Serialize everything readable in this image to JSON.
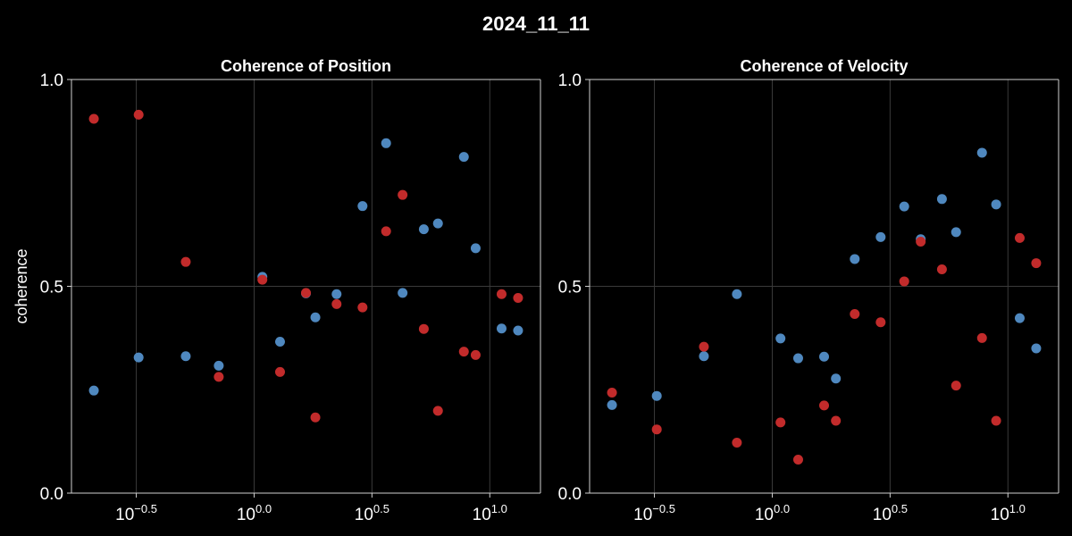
{
  "figure_title": "2024_11_11",
  "colors": {
    "background": "#000000",
    "blue": "#4f88bf",
    "red": "#c22b2b",
    "grid": "#3a3a3a",
    "spine": "#d0d0d0"
  },
  "chart_data": [
    {
      "type": "scatter",
      "title": "Coherence of Position",
      "xlabel": "",
      "ylabel": "coherence",
      "xscale": "log10",
      "ylim": [
        0,
        1
      ],
      "y_ticks": [
        {
          "value": 0,
          "label": "0.0"
        },
        {
          "value": 0.5,
          "label": "0.5"
        },
        {
          "value": 1,
          "label": "1.0"
        }
      ],
      "x_ticks": [
        {
          "exp": -0.5,
          "base": "10",
          "sup": "−0.5"
        },
        {
          "exp": 0.0,
          "base": "10",
          "sup": "0.0"
        },
        {
          "exp": 0.5,
          "base": "10",
          "sup": "0.5"
        },
        {
          "exp": 1.0,
          "base": "10",
          "sup": "1.0"
        }
      ],
      "grid": true,
      "series": [
        {
          "color": "blue",
          "points": [
            {
              "log10x": -0.68,
              "y": 0.248
            },
            {
              "log10x": -0.49,
              "y": 0.328
            },
            {
              "log10x": -0.29,
              "y": 0.331
            },
            {
              "log10x": -0.15,
              "y": 0.308
            },
            {
              "log10x": 0.035,
              "y": 0.523
            },
            {
              "log10x": 0.11,
              "y": 0.366
            },
            {
              "log10x": 0.22,
              "y": 0.483
            },
            {
              "log10x": 0.26,
              "y": 0.425
            },
            {
              "log10x": 0.35,
              "y": 0.481
            },
            {
              "log10x": 0.46,
              "y": 0.694
            },
            {
              "log10x": 0.56,
              "y": 0.846
            },
            {
              "log10x": 0.63,
              "y": 0.484
            },
            {
              "log10x": 0.72,
              "y": 0.638
            },
            {
              "log10x": 0.78,
              "y": 0.652
            },
            {
              "log10x": 0.89,
              "y": 0.813
            },
            {
              "log10x": 0.94,
              "y": 0.592
            },
            {
              "log10x": 1.05,
              "y": 0.398
            },
            {
              "log10x": 1.12,
              "y": 0.393
            }
          ]
        },
        {
          "color": "red",
          "points": [
            {
              "log10x": -0.68,
              "y": 0.905
            },
            {
              "log10x": -0.49,
              "y": 0.915
            },
            {
              "log10x": -0.29,
              "y": 0.559
            },
            {
              "log10x": -0.15,
              "y": 0.281
            },
            {
              "log10x": 0.035,
              "y": 0.516
            },
            {
              "log10x": 0.11,
              "y": 0.293
            },
            {
              "log10x": 0.22,
              "y": 0.484
            },
            {
              "log10x": 0.26,
              "y": 0.183
            },
            {
              "log10x": 0.35,
              "y": 0.457
            },
            {
              "log10x": 0.46,
              "y": 0.449
            },
            {
              "log10x": 0.56,
              "y": 0.633
            },
            {
              "log10x": 0.63,
              "y": 0.721
            },
            {
              "log10x": 0.72,
              "y": 0.397
            },
            {
              "log10x": 0.78,
              "y": 0.199
            },
            {
              "log10x": 0.89,
              "y": 0.342
            },
            {
              "log10x": 0.94,
              "y": 0.334
            },
            {
              "log10x": 1.05,
              "y": 0.481
            },
            {
              "log10x": 1.12,
              "y": 0.472
            }
          ]
        }
      ]
    },
    {
      "type": "scatter",
      "title": "Coherence of Velocity",
      "xlabel": "",
      "ylabel": "",
      "xscale": "log10",
      "ylim": [
        0,
        1
      ],
      "y_ticks": [
        {
          "value": 0,
          "label": "0.0"
        },
        {
          "value": 0.5,
          "label": "0.5"
        },
        {
          "value": 1,
          "label": "1.0"
        }
      ],
      "x_ticks": [
        {
          "exp": -0.5,
          "base": "10",
          "sup": "−0.5"
        },
        {
          "exp": 0.0,
          "base": "10",
          "sup": "0.0"
        },
        {
          "exp": 0.5,
          "base": "10",
          "sup": "0.5"
        },
        {
          "exp": 1.0,
          "base": "10",
          "sup": "1.0"
        }
      ],
      "grid": true,
      "series": [
        {
          "color": "blue",
          "points": [
            {
              "log10x": -0.68,
              "y": 0.213
            },
            {
              "log10x": -0.49,
              "y": 0.235
            },
            {
              "log10x": -0.29,
              "y": 0.331
            },
            {
              "log10x": -0.15,
              "y": 0.481
            },
            {
              "log10x": 0.035,
              "y": 0.374
            },
            {
              "log10x": 0.11,
              "y": 0.326
            },
            {
              "log10x": 0.22,
              "y": 0.33
            },
            {
              "log10x": 0.27,
              "y": 0.277
            },
            {
              "log10x": 0.35,
              "y": 0.566
            },
            {
              "log10x": 0.46,
              "y": 0.619
            },
            {
              "log10x": 0.56,
              "y": 0.693
            },
            {
              "log10x": 0.63,
              "y": 0.614
            },
            {
              "log10x": 0.72,
              "y": 0.711
            },
            {
              "log10x": 0.78,
              "y": 0.631
            },
            {
              "log10x": 0.89,
              "y": 0.823
            },
            {
              "log10x": 0.95,
              "y": 0.698
            },
            {
              "log10x": 1.05,
              "y": 0.423
            },
            {
              "log10x": 1.12,
              "y": 0.35
            }
          ]
        },
        {
          "color": "red",
          "points": [
            {
              "log10x": -0.68,
              "y": 0.243
            },
            {
              "log10x": -0.49,
              "y": 0.154
            },
            {
              "log10x": -0.29,
              "y": 0.354
            },
            {
              "log10x": -0.15,
              "y": 0.122
            },
            {
              "log10x": 0.035,
              "y": 0.171
            },
            {
              "log10x": 0.11,
              "y": 0.081
            },
            {
              "log10x": 0.22,
              "y": 0.212
            },
            {
              "log10x": 0.27,
              "y": 0.175
            },
            {
              "log10x": 0.35,
              "y": 0.433
            },
            {
              "log10x": 0.46,
              "y": 0.413
            },
            {
              "log10x": 0.56,
              "y": 0.512
            },
            {
              "log10x": 0.63,
              "y": 0.608
            },
            {
              "log10x": 0.72,
              "y": 0.541
            },
            {
              "log10x": 0.78,
              "y": 0.26
            },
            {
              "log10x": 0.89,
              "y": 0.375
            },
            {
              "log10x": 0.95,
              "y": 0.175
            },
            {
              "log10x": 1.05,
              "y": 0.617
            },
            {
              "log10x": 1.12,
              "y": 0.556
            }
          ]
        }
      ]
    }
  ]
}
